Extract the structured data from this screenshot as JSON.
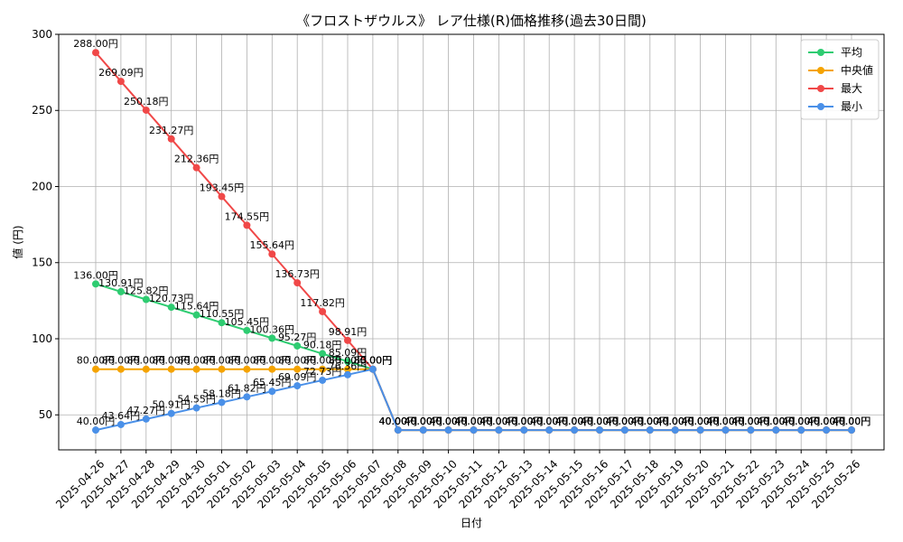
{
  "chart_data": {
    "type": "line",
    "title": "《フロストザウルス》 レア仕様(R)価格推移(過去30日間)",
    "xlabel": "日付",
    "ylabel": "値 (円)",
    "ylim": [
      27,
      300
    ],
    "yticks": [
      50,
      100,
      150,
      200,
      250,
      300
    ],
    "grid": true,
    "legend_position": "top-right",
    "categories": [
      "2025-04-26",
      "2025-04-27",
      "2025-04-28",
      "2025-04-29",
      "2025-04-30",
      "2025-05-01",
      "2025-05-02",
      "2025-05-03",
      "2025-05-04",
      "2025-05-05",
      "2025-05-06",
      "2025-05-07",
      "2025-05-08",
      "2025-05-09",
      "2025-05-10",
      "2025-05-11",
      "2025-05-12",
      "2025-05-13",
      "2025-05-14",
      "2025-05-15",
      "2025-05-16",
      "2025-05-17",
      "2025-05-18",
      "2025-05-19",
      "2025-05-20",
      "2025-05-21",
      "2025-05-22",
      "2025-05-23",
      "2025-05-24",
      "2025-05-25",
      "2025-05-26"
    ],
    "series": [
      {
        "name": "平均",
        "color": "#2ecc71",
        "values": [
          136.0,
          130.91,
          125.82,
          120.73,
          115.64,
          110.55,
          105.45,
          100.36,
          95.27,
          90.18,
          85.09,
          80.0,
          40.0,
          40.0,
          40.0,
          40.0,
          40.0,
          40.0,
          40.0,
          40.0,
          40.0,
          40.0,
          40.0,
          40.0,
          40.0,
          40.0,
          40.0,
          40.0,
          40.0,
          40.0,
          40.0
        ]
      },
      {
        "name": "中央値",
        "color": "#f5a300",
        "values": [
          80.0,
          80.0,
          80.0,
          80.0,
          80.0,
          80.0,
          80.0,
          80.0,
          80.0,
          80.0,
          80.0,
          80.0,
          40.0,
          40.0,
          40.0,
          40.0,
          40.0,
          40.0,
          40.0,
          40.0,
          40.0,
          40.0,
          40.0,
          40.0,
          40.0,
          40.0,
          40.0,
          40.0,
          40.0,
          40.0,
          40.0
        ]
      },
      {
        "name": "最大",
        "color": "#f04848",
        "values": [
          288.0,
          269.09,
          250.18,
          231.27,
          212.36,
          193.45,
          174.55,
          155.64,
          136.73,
          117.82,
          98.91,
          80.0,
          40.0,
          40.0,
          40.0,
          40.0,
          40.0,
          40.0,
          40.0,
          40.0,
          40.0,
          40.0,
          40.0,
          40.0,
          40.0,
          40.0,
          40.0,
          40.0,
          40.0,
          40.0,
          40.0
        ]
      },
      {
        "name": "最小",
        "color": "#4a90e8",
        "values": [
          40.0,
          43.64,
          47.27,
          50.91,
          54.55,
          58.18,
          61.82,
          65.45,
          69.09,
          72.73,
          76.36,
          80.0,
          40.0,
          40.0,
          40.0,
          40.0,
          40.0,
          40.0,
          40.0,
          40.0,
          40.0,
          40.0,
          40.0,
          40.0,
          40.0,
          40.0,
          40.0,
          40.0,
          40.0,
          40.0,
          40.0
        ]
      }
    ]
  },
  "colors": {
    "grid": "#b0b0b0",
    "axis": "#000000",
    "legend_border": "#cccccc"
  }
}
